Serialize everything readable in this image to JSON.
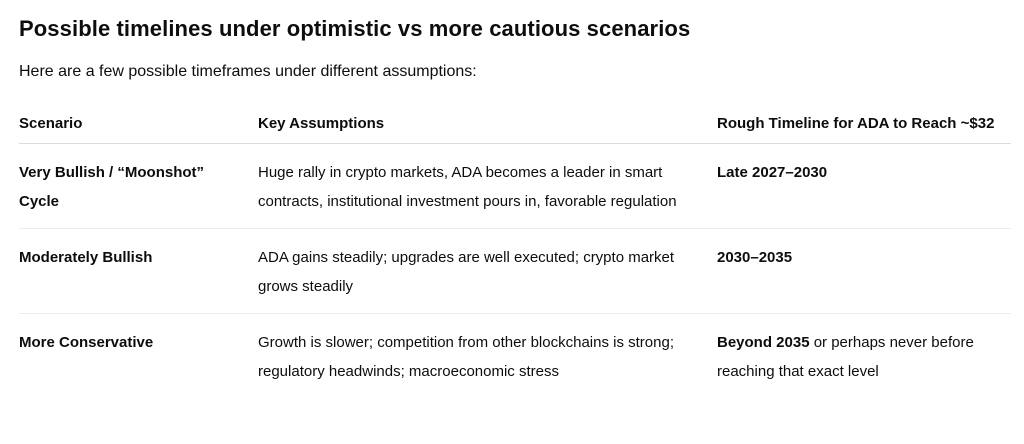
{
  "heading": "Possible timelines under optimistic vs more cautious scenarios",
  "intro": "Here are a few possible timeframes under different assumptions:",
  "table": {
    "headers": {
      "scenario": "Scenario",
      "assumptions": "Key Assumptions",
      "timeline": "Rough Timeline for ADA to Reach ~$32"
    },
    "rows": [
      {
        "scenario": "Very Bullish / “Moonshot” Cycle",
        "assumptions": "Huge rally in crypto markets, ADA becomes a leader in smart contracts, institutional investment pours in, favorable regulation",
        "timeline_bold": "Late 2027–2030",
        "timeline_rest": ""
      },
      {
        "scenario": "Moderately Bullish",
        "assumptions": "ADA gains steadily; upgrades are well executed; crypto market grows steadily",
        "timeline_bold": "2030–2035",
        "timeline_rest": ""
      },
      {
        "scenario": "More Conservative",
        "assumptions": "Growth is slower; competition from other blockchains is strong; regulatory headwinds; macroeconomic stress",
        "timeline_bold": "Beyond 2035",
        "timeline_rest": " or perhaps never before reaching that exact level"
      }
    ]
  }
}
